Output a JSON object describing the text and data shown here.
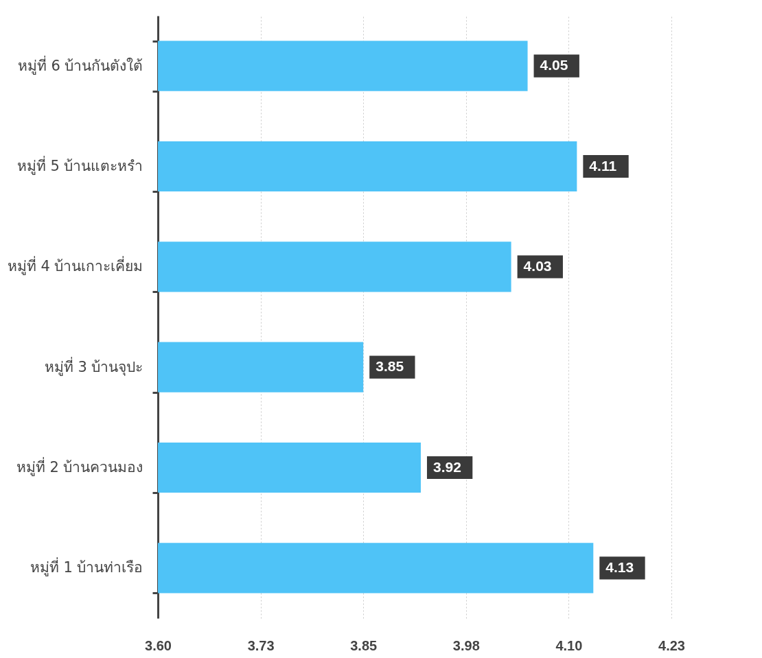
{
  "chart_data": {
    "type": "bar",
    "orientation": "horizontal",
    "categories": [
      "หมู่ที่ 6 บ้านกันตังใต้",
      "หมู่ที่ 5 บ้านแตะหรำ",
      "หมู่ที่ 4 บ้านเกาะเคี่ยม",
      "หมู่ที่ 3 บ้านจุปะ",
      "หมู่ที่ 2 บ้านควนมอง",
      "หมู่ที่ 1 บ้านท่าเรือ"
    ],
    "values": [
      4.05,
      4.11,
      4.03,
      3.85,
      3.92,
      4.13
    ],
    "color": "#4fc3f7",
    "xlim": [
      3.6,
      4.225
    ],
    "xticks": [
      {
        "value": 3.6,
        "label": "3.60"
      },
      {
        "value": 3.725,
        "label": "3.73"
      },
      {
        "value": 3.85,
        "label": "3.85"
      },
      {
        "value": 3.975,
        "label": "3.98"
      },
      {
        "value": 4.1,
        "label": "4.10"
      },
      {
        "value": 4.225,
        "label": "4.23"
      }
    ],
    "grid": "x",
    "data_labels": true
  }
}
